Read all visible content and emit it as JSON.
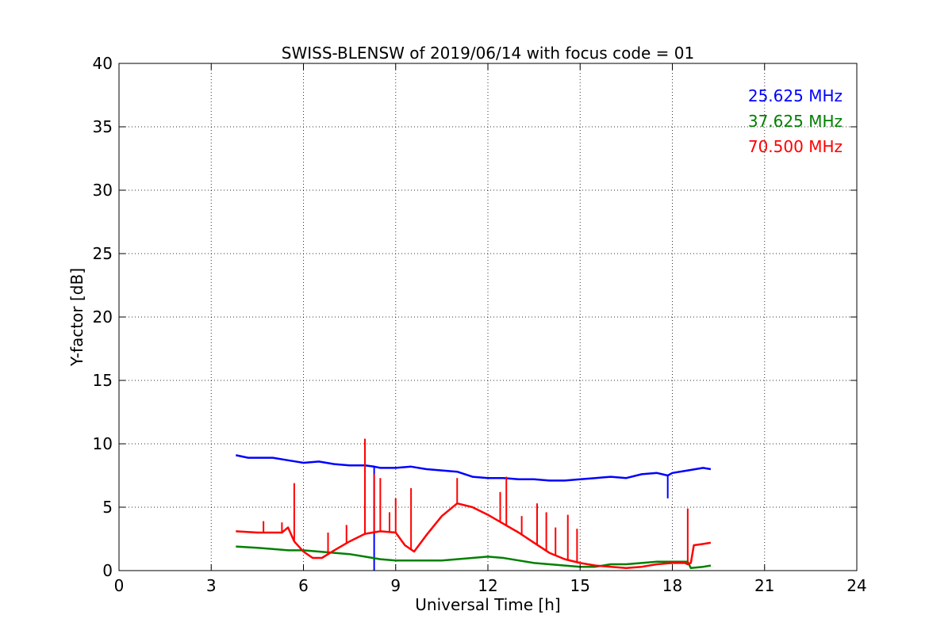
{
  "chart_data": {
    "type": "line",
    "title": "SWISS-BLENSW of 2019/06/14 with focus code = 01",
    "xlabel": "Universal Time [h]",
    "ylabel": "Y-factor [dB]",
    "xlim": [
      0,
      24
    ],
    "ylim": [
      0,
      40
    ],
    "xticks": [
      "0",
      "3",
      "6",
      "9",
      "12",
      "15",
      "18",
      "21",
      "24"
    ],
    "yticks": [
      "0",
      "5",
      "10",
      "15",
      "20",
      "25",
      "30",
      "35",
      "40"
    ],
    "grid": true,
    "legend_position": "top-right",
    "series": [
      {
        "name": "25.625 MHz",
        "color": "#0000ff",
        "x": [
          3.8,
          4.2,
          4.6,
          5.0,
          5.5,
          6.0,
          6.5,
          7.0,
          7.5,
          8.0,
          8.3,
          8.5,
          9.0,
          9.5,
          10.0,
          10.5,
          11.0,
          11.5,
          12.0,
          12.5,
          13.0,
          13.5,
          14.0,
          14.5,
          15.0,
          15.5,
          16.0,
          16.5,
          17.0,
          17.5,
          17.85,
          18.0,
          18.5,
          19.0,
          19.25
        ],
        "y": [
          9.1,
          8.9,
          8.9,
          8.9,
          8.7,
          8.5,
          8.6,
          8.4,
          8.3,
          8.3,
          8.2,
          8.1,
          8.1,
          8.2,
          8.0,
          7.9,
          7.8,
          7.4,
          7.3,
          7.3,
          7.2,
          7.2,
          7.1,
          7.1,
          7.2,
          7.3,
          7.4,
          7.3,
          7.6,
          7.7,
          7.5,
          7.7,
          7.9,
          8.1,
          8.0
        ],
        "spikes": [
          {
            "x": 8.3,
            "y": 0
          },
          {
            "x": 17.85,
            "y": 5.7
          }
        ]
      },
      {
        "name": "37.625 MHz",
        "color": "#008000",
        "x": [
          3.8,
          4.5,
          5.0,
          5.5,
          6.0,
          6.5,
          7.0,
          7.5,
          8.0,
          8.5,
          9.0,
          9.5,
          10.0,
          10.5,
          11.0,
          11.5,
          12.0,
          12.5,
          13.0,
          13.5,
          14.0,
          14.5,
          15.0,
          15.5,
          16.0,
          16.5,
          17.0,
          17.5,
          18.0,
          18.5,
          18.6,
          19.0,
          19.25
        ],
        "y": [
          1.9,
          1.8,
          1.7,
          1.6,
          1.6,
          1.5,
          1.4,
          1.3,
          1.1,
          0.9,
          0.8,
          0.8,
          0.8,
          0.8,
          0.9,
          1.0,
          1.1,
          1.0,
          0.8,
          0.6,
          0.5,
          0.4,
          0.3,
          0.3,
          0.5,
          0.5,
          0.6,
          0.7,
          0.7,
          0.7,
          0.2,
          0.3,
          0.4
        ]
      },
      {
        "name": "70.500 MHz",
        "color": "#ff0000",
        "x": [
          3.8,
          4.5,
          5.0,
          5.3,
          5.5,
          5.7,
          6.0,
          6.3,
          6.6,
          7.0,
          7.5,
          8.0,
          8.5,
          9.0,
          9.3,
          9.6,
          10.0,
          10.5,
          11.0,
          11.5,
          12.0,
          12.5,
          13.0,
          13.5,
          14.0,
          14.5,
          15.0,
          15.5,
          16.0,
          16.5,
          17.0,
          17.5,
          18.0,
          18.4,
          18.5,
          18.6,
          18.7,
          19.0,
          19.25
        ],
        "y": [
          3.1,
          3.0,
          3.0,
          3.0,
          3.4,
          2.3,
          1.5,
          1.0,
          1.0,
          1.6,
          2.3,
          2.9,
          3.1,
          3.0,
          2.0,
          1.5,
          2.8,
          4.3,
          5.3,
          5.0,
          4.4,
          3.7,
          3.0,
          2.2,
          1.4,
          0.9,
          0.6,
          0.4,
          0.3,
          0.2,
          0.3,
          0.5,
          0.6,
          0.6,
          0.5,
          0.6,
          2.0,
          2.1,
          2.2
        ],
        "spikes": [
          {
            "x": 4.7,
            "y": 3.9
          },
          {
            "x": 5.3,
            "y": 3.8
          },
          {
            "x": 5.7,
            "y": 6.9
          },
          {
            "x": 6.8,
            "y": 3.0
          },
          {
            "x": 7.4,
            "y": 3.6
          },
          {
            "x": 8.0,
            "y": 10.4
          },
          {
            "x": 8.3,
            "y": 7.6
          },
          {
            "x": 8.5,
            "y": 7.3
          },
          {
            "x": 8.8,
            "y": 4.6
          },
          {
            "x": 9.0,
            "y": 5.7
          },
          {
            "x": 9.5,
            "y": 6.5
          },
          {
            "x": 11.0,
            "y": 7.3
          },
          {
            "x": 12.4,
            "y": 6.2
          },
          {
            "x": 12.6,
            "y": 7.4
          },
          {
            "x": 13.1,
            "y": 4.3
          },
          {
            "x": 13.6,
            "y": 5.3
          },
          {
            "x": 13.9,
            "y": 4.6
          },
          {
            "x": 14.2,
            "y": 3.4
          },
          {
            "x": 14.6,
            "y": 4.4
          },
          {
            "x": 14.9,
            "y": 3.3
          },
          {
            "x": 18.5,
            "y": 4.9
          }
        ]
      }
    ]
  }
}
